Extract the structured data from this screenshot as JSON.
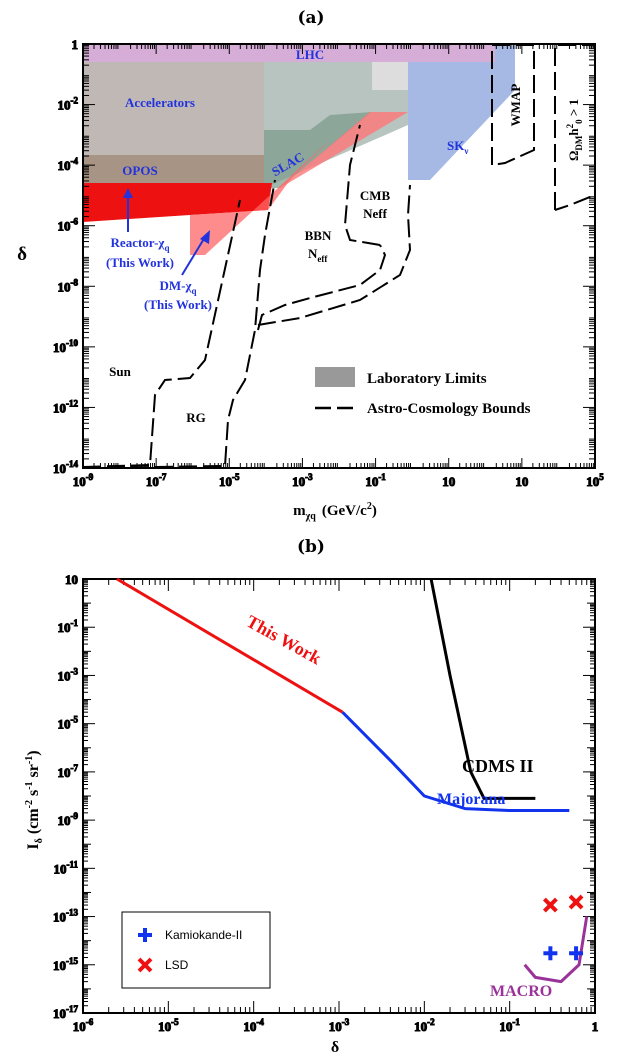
{
  "panel_a": {
    "label": "(a)",
    "xlabel": "m",
    "xlabel_sub": "χq",
    "xlabel_unit": "(GeV/c",
    "ylabel": "δ",
    "region_labels": {
      "lhc": "LHC",
      "accelerators": "Accelerators",
      "opos": "OPOS",
      "slac": "SLAC",
      "sk": "SK",
      "sk_sub": "ν",
      "wmap": "WMAP",
      "omega": "Ω",
      "omega_sub": "DM",
      "omega_rest": "h",
      "omega_tail": "> 1",
      "cmb": "CMB",
      "neff": "Neff",
      "bbn": "BBN",
      "bbn_n": "N",
      "bbn_sub": "eff",
      "reactor_1": "Reactor-χ",
      "reactor_sub": "q",
      "reactor_2": "(This Work)",
      "dm_1": "DM-χ",
      "dm_sub": "q",
      "dm_2": "(This Work)",
      "sun": "Sun",
      "rg": "RG"
    },
    "legend": [
      {
        "label": "Laboratory Limits",
        "style": "box",
        "color": "#999999"
      },
      {
        "label": "Astro-Cosmology Bounds",
        "style": "dashed",
        "color": "#000000"
      }
    ],
    "x_ticks": [
      "10",
      "10",
      "10",
      "10",
      "10",
      "10",
      "10",
      "10"
    ],
    "x_tick_exp": [
      "-9",
      "-7",
      "-5",
      "-3",
      "-1",
      "",
      "",
      "5"
    ],
    "x_tick_plain": [
      "",
      "",
      "",
      "",
      "",
      "10",
      "10",
      ""
    ],
    "y_ticks": [
      "1",
      "10",
      "10",
      "10",
      "10",
      "10",
      "10",
      "10"
    ],
    "y_tick_exp": [
      "",
      "-2",
      "-4",
      "-6",
      "-8",
      "-10",
      "-12",
      "-14"
    ]
  },
  "panel_b": {
    "label": "(b)",
    "xlabel": "δ",
    "ylabel": "I",
    "ylabel_sub": "δ",
    "ylabel_unit": "(cm",
    "series_labels": {
      "this_work": "This Work",
      "cdms": "CDMS II",
      "majorana": "Majorana",
      "macro": "MACRO"
    },
    "legend": [
      {
        "label": "Kamiokande-II",
        "marker": "plus",
        "color": "#1133ee"
      },
      {
        "label": "LSD",
        "marker": "cross",
        "color": "#ee1111"
      }
    ],
    "x_tick_exp": [
      "-6",
      "-5",
      "-4",
      "-3",
      "-2",
      "-1"
    ],
    "x_last_tick": "1",
    "y_first_tick": "10",
    "y_tick_exp": [
      "-1",
      "-3",
      "-5",
      "-7",
      "-9",
      "-11",
      "-13",
      "-15",
      "-17"
    ]
  },
  "chart_data": [
    {
      "type": "area",
      "title": "(a)",
      "xlabel": "m_χq (GeV/c²)",
      "ylabel": "δ",
      "x_scale": "log",
      "y_scale": "log",
      "xlim": [
        1e-09,
        100000.0
      ],
      "ylim": [
        1e-14,
        1
      ],
      "series": [
        {
          "name": "LHC",
          "kind": "lab",
          "polygon": [
            [
              1e-09,
              1
            ],
            [
              100,
              1
            ],
            [
              100,
              0.3
            ],
            [
              1e-09,
              0.3
            ]
          ]
        },
        {
          "name": "Accelerators",
          "kind": "lab",
          "polygon": [
            [
              1e-09,
              0.3
            ],
            [
              0.0001,
              0.3
            ],
            [
              0.0001,
              0.0001
            ],
            [
              1e-09,
              0.0001
            ]
          ]
        },
        {
          "name": "OPOS",
          "kind": "lab",
          "polygon": [
            [
              1e-09,
              0.0001
            ],
            [
              0.0001,
              0.0001
            ],
            [
              0.0001,
              1e-05
            ],
            [
              1e-09,
              1e-05
            ]
          ]
        },
        {
          "name": "SLAC",
          "kind": "lab",
          "polygon": [
            [
              0.0001,
              0.3
            ],
            [
              0.1,
              0.3
            ],
            [
              0.1,
              0.001
            ],
            [
              0.0001,
              3e-05
            ]
          ]
        },
        {
          "name": "SK_ν",
          "kind": "lab",
          "polygon": [
            [
              0.5,
              1
            ],
            [
              300,
              1
            ],
            [
              300,
              0.03
            ],
            [
              0.5,
              3e-05
            ]
          ]
        },
        {
          "name": "Reactor-χq (This Work)",
          "kind": "this_work",
          "polygon": [
            [
              1e-09,
              1e-05
            ],
            [
              0.0001,
              1e-05
            ],
            [
              1e-05,
              1e-06
            ],
            [
              1e-09,
              2e-06
            ]
          ]
        },
        {
          "name": "DM-χq (This Work)",
          "kind": "this_work",
          "polygon": [
            [
              1e-06,
              1e-05
            ],
            [
              0.5,
              0.001
            ],
            [
              1e-05,
              1e-06
            ],
            [
              1e-06,
              3e-07
            ]
          ]
        }
      ],
      "bounds": [
        {
          "name": "Sun",
          "x": [
            1e-09,
            1e-07,
            2e-07,
            1e-06
          ],
          "y": [
            1e-14,
            1e-14,
            1e-12,
            1e-06
          ]
        },
        {
          "name": "RG",
          "x": [
            1e-09,
            1e-05,
            2e-05,
            0.001,
            0.01
          ],
          "y": [
            1e-14,
            1e-14,
            1e-11,
            1e-08,
            1e-06
          ]
        },
        {
          "name": "BBN N_eff",
          "x": [
            1e-05,
            0.001,
            0.01,
            0.1
          ],
          "y": [
            1e-09,
            1e-08,
            1e-07,
            1e-06
          ]
        },
        {
          "name": "CMB Neff",
          "x": [
            0.01,
            0.05,
            0.1,
            0.5
          ],
          "y": [
            1e-06,
            1e-06,
            1e-07,
            1e-06
          ]
        },
        {
          "name": "WMAP",
          "x": [
            300,
            1000
          ],
          "y": [
            0.01,
            0.0001
          ]
        },
        {
          "name": "Ω_DM h0² > 1",
          "x": [
            10000.0,
            100000.0
          ],
          "y": [
            1e-05,
            1
          ]
        }
      ]
    },
    {
      "type": "line",
      "title": "(b)",
      "xlabel": "δ",
      "ylabel": "I_δ (cm⁻² s⁻¹ sr⁻¹)",
      "x_scale": "log",
      "y_scale": "log",
      "xlim": [
        1e-06,
        1
      ],
      "ylim": [
        1e-17,
        10
      ],
      "series": [
        {
          "name": "This Work",
          "color": "#ee1111",
          "x": [
            2.5e-06,
            0.0011
          ],
          "y": [
            10,
            3e-05
          ]
        },
        {
          "name": "Majorana",
          "color": "#1133ee",
          "x": [
            0.0011,
            0.004,
            0.01,
            0.03,
            0.1,
            0.5
          ],
          "y": [
            3e-05,
            3e-07,
            1e-08,
            3e-09,
            2.5e-09,
            2.5e-09
          ]
        },
        {
          "name": "CDMS II",
          "color": "#000000",
          "x": [
            0.012,
            0.02,
            0.035,
            0.05,
            0.2
          ],
          "y": [
            10,
            0.001,
            1e-07,
            8e-09,
            8e-09
          ]
        },
        {
          "name": "MACRO",
          "color": "#993399",
          "x": [
            0.15,
            0.2,
            0.4,
            0.65,
            0.8
          ],
          "y": [
            1e-15,
            3e-16,
            2e-16,
            1e-15,
            1e-13
          ]
        },
        {
          "name": "Kamiokande-II",
          "marker": "plus",
          "color": "#1133ee",
          "x": [
            0.3,
            0.6
          ],
          "y": [
            3e-15,
            3e-15
          ]
        },
        {
          "name": "LSD",
          "marker": "cross",
          "color": "#ee1111",
          "x": [
            0.3,
            0.6
          ],
          "y": [
            3e-13,
            4e-13
          ]
        }
      ]
    }
  ]
}
